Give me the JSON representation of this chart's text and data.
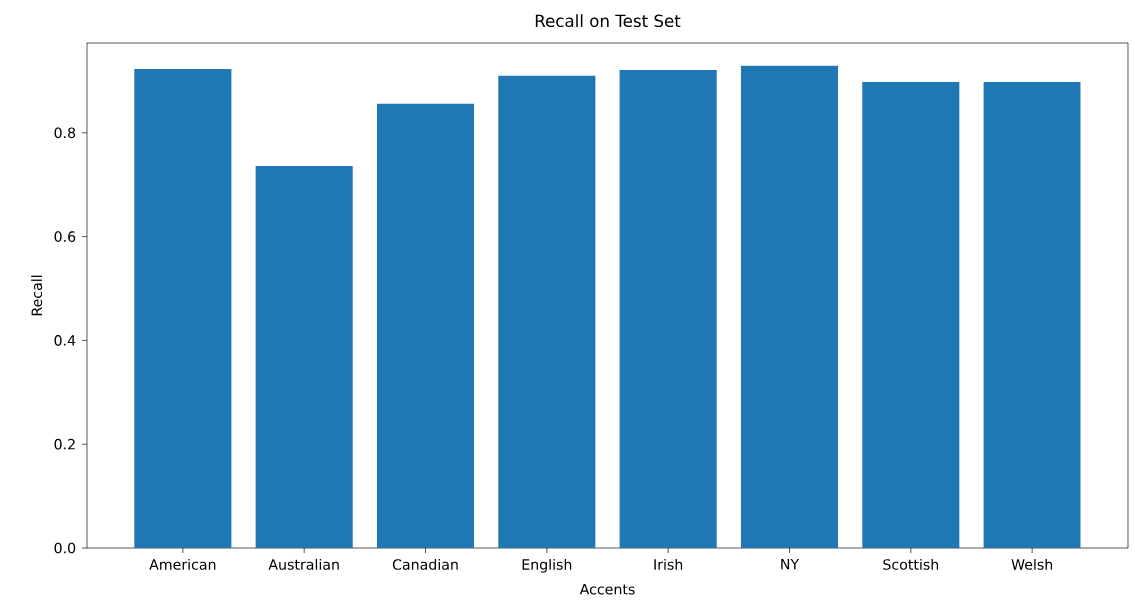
{
  "chart_data": {
    "type": "bar",
    "title": "Recall on Test Set",
    "xlabel": "Accents",
    "ylabel": "Recall",
    "categories": [
      "American",
      "Australian",
      "Canadian",
      "English",
      "Irish",
      "NY",
      "Scottish",
      "Welsh"
    ],
    "values": [
      0.923,
      0.736,
      0.856,
      0.91,
      0.921,
      0.929,
      0.898,
      0.898
    ],
    "color": "#1f77b4",
    "ylim": [
      0,
      0.973
    ],
    "yticks": [
      {
        "value": 0,
        "label": "0.0"
      },
      {
        "value": 0.2,
        "label": "0.2"
      },
      {
        "value": 0.4,
        "label": "0.4"
      },
      {
        "value": 0.6,
        "label": "0.6"
      },
      {
        "value": 0.8,
        "label": "0.8"
      }
    ],
    "grid": false
  }
}
